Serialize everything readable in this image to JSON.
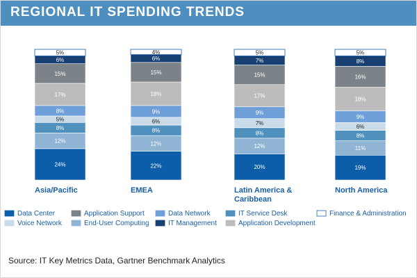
{
  "title": "REGIONAL IT SPENDING TRENDS",
  "source": "Source: IT Key Metrics Data, Gartner Benchmark Analytics",
  "colors": {
    "title_band": "#4f8fc0",
    "category_label": "#1a5ea5"
  },
  "chart_data": {
    "type": "bar",
    "stacked": true,
    "percent_stacked": true,
    "categories": [
      "Asia/Pacific",
      "EMEA",
      "Latin America & Caribbean",
      "North America"
    ],
    "ylim": [
      0,
      100
    ],
    "grid": false,
    "legend_position": "bottom",
    "series": [
      {
        "name": "Data Center",
        "color": "#0c5ea8",
        "label_color": "#ffffff",
        "values": [
          24,
          22,
          20,
          19
        ]
      },
      {
        "name": "End-User Computing",
        "color": "#8fb4d4",
        "label_color": "#ffffff",
        "values": [
          12,
          12,
          12,
          11
        ]
      },
      {
        "name": "IT Service Desk",
        "color": "#4f90bd",
        "label_color": "#ffffff",
        "values": [
          8,
          8,
          8,
          8
        ]
      },
      {
        "name": "Voice Network",
        "color": "#c9dbe8",
        "label_color": "#222222",
        "values": [
          5,
          6,
          7,
          6
        ]
      },
      {
        "name": "Data Network",
        "color": "#6f9fd8",
        "label_color": "#ffffff",
        "values": [
          8,
          9,
          9,
          9
        ]
      },
      {
        "name": "Application Development",
        "color": "#bcbcbc",
        "label_color": "#ffffff",
        "values": [
          17,
          18,
          17,
          18
        ]
      },
      {
        "name": "Application Support",
        "color": "#7b8389",
        "label_color": "#ffffff",
        "values": [
          15,
          15,
          15,
          16
        ]
      },
      {
        "name": "IT Management",
        "color": "#173f71",
        "label_color": "#ffffff",
        "values": [
          6,
          6,
          7,
          8
        ]
      },
      {
        "name": "Finance & Administration",
        "color": "#ffffff",
        "label_color": "#222222",
        "values": [
          5,
          4,
          5,
          5
        ]
      }
    ],
    "value_suffix": "%",
    "legend_order": [
      "Data Center",
      "Application Support",
      "Data Network",
      "IT Service Desk",
      "Finance & Administration",
      "Voice Network",
      "End-User Computing",
      "IT Management",
      "Application Development"
    ]
  }
}
